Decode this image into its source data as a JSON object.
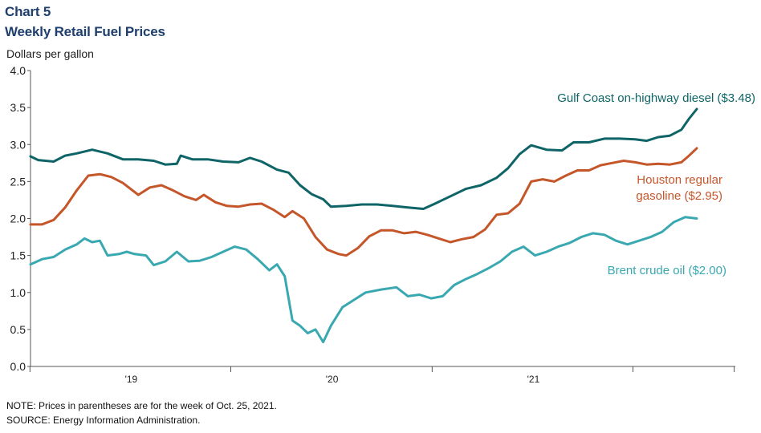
{
  "chart_data": {
    "type": "line",
    "label": "Chart 5",
    "title": "Weekly Retail Fuel Prices",
    "ylabel": "Dollars per gallon",
    "ylim": [
      0,
      4.0
    ],
    "yticks": [
      "0.0",
      "0.5",
      "1.0",
      "1.5",
      "2.0",
      "2.5",
      "3.0",
      "3.5",
      "4.0"
    ],
    "xticks": [
      "'19",
      "'20",
      "'21"
    ],
    "grid": false,
    "x_start": "2018-07-02",
    "x_end": "2022-01-03",
    "series": [
      {
        "name": "Gulf Coast on-highway diesel ($3.48)",
        "color": "#0e6466",
        "points": [
          [
            "2018-07-02",
            2.84
          ],
          [
            "2018-07-16",
            2.79
          ],
          [
            "2018-08-13",
            2.77
          ],
          [
            "2018-09-03",
            2.85
          ],
          [
            "2018-09-24",
            2.88
          ],
          [
            "2018-10-22",
            2.93
          ],
          [
            "2018-11-19",
            2.88
          ],
          [
            "2018-12-17",
            2.8
          ],
          [
            "2019-01-14",
            2.8
          ],
          [
            "2019-02-11",
            2.78
          ],
          [
            "2019-03-04",
            2.73
          ],
          [
            "2019-03-25",
            2.74
          ],
          [
            "2019-04-01",
            2.85
          ],
          [
            "2019-04-22",
            2.8
          ],
          [
            "2019-05-20",
            2.8
          ],
          [
            "2019-06-17",
            2.77
          ],
          [
            "2019-07-15",
            2.76
          ],
          [
            "2019-08-05",
            2.82
          ],
          [
            "2019-08-26",
            2.77
          ],
          [
            "2019-09-23",
            2.66
          ],
          [
            "2019-10-14",
            2.62
          ],
          [
            "2019-11-04",
            2.45
          ],
          [
            "2019-11-25",
            2.33
          ],
          [
            "2019-12-16",
            2.26
          ],
          [
            "2019-12-30",
            2.16
          ],
          [
            "2020-01-27",
            2.17
          ],
          [
            "2020-02-24",
            2.19
          ],
          [
            "2020-03-23",
            2.19
          ],
          [
            "2020-04-20",
            2.17
          ],
          [
            "2020-05-18",
            2.15
          ],
          [
            "2020-06-15",
            2.13
          ],
          [
            "2020-07-06",
            2.2
          ],
          [
            "2020-08-03",
            2.3
          ],
          [
            "2020-08-31",
            2.4
          ],
          [
            "2020-09-28",
            2.45
          ],
          [
            "2020-10-26",
            2.55
          ],
          [
            "2020-11-16",
            2.68
          ],
          [
            "2020-12-07",
            2.87
          ],
          [
            "2020-12-28",
            2.99
          ],
          [
            "2021-01-25",
            2.93
          ],
          [
            "2021-02-22",
            2.92
          ],
          [
            "2021-03-15",
            3.03
          ],
          [
            "2021-04-12",
            3.03
          ],
          [
            "2021-05-10",
            3.08
          ],
          [
            "2021-06-07",
            3.08
          ],
          [
            "2021-07-05",
            3.07
          ],
          [
            "2021-07-26",
            3.05
          ],
          [
            "2021-08-16",
            3.1
          ],
          [
            "2021-09-06",
            3.12
          ],
          [
            "2021-09-27",
            3.2
          ],
          [
            "2021-10-11",
            3.35
          ],
          [
            "2021-10-25",
            3.48
          ]
        ]
      },
      {
        "name": "Houston regular gasoline ($2.95)",
        "color": "#c4562a",
        "points": [
          [
            "2018-07-02",
            1.92
          ],
          [
            "2018-07-23",
            1.92
          ],
          [
            "2018-08-13",
            1.98
          ],
          [
            "2018-09-03",
            2.15
          ],
          [
            "2018-09-24",
            2.38
          ],
          [
            "2018-10-15",
            2.58
          ],
          [
            "2018-11-05",
            2.6
          ],
          [
            "2018-11-26",
            2.56
          ],
          [
            "2018-12-17",
            2.48
          ],
          [
            "2019-01-14",
            2.32
          ],
          [
            "2019-02-04",
            2.42
          ],
          [
            "2019-02-25",
            2.45
          ],
          [
            "2019-03-18",
            2.38
          ],
          [
            "2019-04-08",
            2.3
          ],
          [
            "2019-04-29",
            2.25
          ],
          [
            "2019-05-13",
            2.32
          ],
          [
            "2019-06-03",
            2.22
          ],
          [
            "2019-06-24",
            2.17
          ],
          [
            "2019-07-15",
            2.16
          ],
          [
            "2019-08-05",
            2.19
          ],
          [
            "2019-08-26",
            2.2
          ],
          [
            "2019-09-16",
            2.12
          ],
          [
            "2019-10-07",
            2.02
          ],
          [
            "2019-10-21",
            2.1
          ],
          [
            "2019-11-11",
            2.0
          ],
          [
            "2019-12-02",
            1.75
          ],
          [
            "2019-12-23",
            1.58
          ],
          [
            "2020-01-13",
            1.52
          ],
          [
            "2020-01-27",
            1.5
          ],
          [
            "2020-02-17",
            1.6
          ],
          [
            "2020-03-09",
            1.76
          ],
          [
            "2020-03-30",
            1.84
          ],
          [
            "2020-04-20",
            1.84
          ],
          [
            "2020-05-11",
            1.8
          ],
          [
            "2020-06-01",
            1.82
          ],
          [
            "2020-06-22",
            1.78
          ],
          [
            "2020-07-13",
            1.73
          ],
          [
            "2020-08-03",
            1.68
          ],
          [
            "2020-08-24",
            1.72
          ],
          [
            "2020-09-14",
            1.75
          ],
          [
            "2020-10-05",
            1.85
          ],
          [
            "2020-10-26",
            2.05
          ],
          [
            "2020-11-16",
            2.07
          ],
          [
            "2020-12-07",
            2.2
          ],
          [
            "2020-12-28",
            2.5
          ],
          [
            "2021-01-18",
            2.53
          ],
          [
            "2021-02-08",
            2.5
          ],
          [
            "2021-03-01",
            2.58
          ],
          [
            "2021-03-22",
            2.65
          ],
          [
            "2021-04-12",
            2.65
          ],
          [
            "2021-05-03",
            2.72
          ],
          [
            "2021-05-24",
            2.75
          ],
          [
            "2021-06-14",
            2.78
          ],
          [
            "2021-07-05",
            2.76
          ],
          [
            "2021-07-26",
            2.73
          ],
          [
            "2021-08-16",
            2.74
          ],
          [
            "2021-09-06",
            2.73
          ],
          [
            "2021-09-27",
            2.76
          ],
          [
            "2021-10-11",
            2.85
          ],
          [
            "2021-10-25",
            2.95
          ]
        ]
      },
      {
        "name": "Brent crude oil ($2.00)",
        "color": "#3aa8b0",
        "points": [
          [
            "2018-07-02",
            1.38
          ],
          [
            "2018-07-23",
            1.45
          ],
          [
            "2018-08-13",
            1.48
          ],
          [
            "2018-09-03",
            1.58
          ],
          [
            "2018-09-24",
            1.65
          ],
          [
            "2018-10-08",
            1.73
          ],
          [
            "2018-10-22",
            1.68
          ],
          [
            "2018-11-05",
            1.7
          ],
          [
            "2018-11-19",
            1.5
          ],
          [
            "2018-12-10",
            1.52
          ],
          [
            "2018-12-24",
            1.55
          ],
          [
            "2019-01-07",
            1.52
          ],
          [
            "2019-01-28",
            1.5
          ],
          [
            "2019-02-11",
            1.37
          ],
          [
            "2019-03-04",
            1.42
          ],
          [
            "2019-03-25",
            1.55
          ],
          [
            "2019-04-15",
            1.42
          ],
          [
            "2019-05-06",
            1.43
          ],
          [
            "2019-05-27",
            1.48
          ],
          [
            "2019-06-17",
            1.55
          ],
          [
            "2019-07-08",
            1.62
          ],
          [
            "2019-07-29",
            1.58
          ],
          [
            "2019-08-19",
            1.45
          ],
          [
            "2019-09-09",
            1.3
          ],
          [
            "2019-09-23",
            1.38
          ],
          [
            "2019-10-07",
            1.22
          ],
          [
            "2019-10-21",
            0.62
          ],
          [
            "2019-11-04",
            0.55
          ],
          [
            "2019-11-18",
            0.45
          ],
          [
            "2019-12-02",
            0.5
          ],
          [
            "2019-12-16",
            0.33
          ],
          [
            "2019-12-30",
            0.55
          ],
          [
            "2020-01-20",
            0.8
          ],
          [
            "2020-02-10",
            0.9
          ],
          [
            "2020-03-02",
            1.0
          ],
          [
            "2020-03-30",
            1.04
          ],
          [
            "2020-04-27",
            1.07
          ],
          [
            "2020-05-18",
            0.95
          ],
          [
            "2020-06-08",
            0.97
          ],
          [
            "2020-06-29",
            0.92
          ],
          [
            "2020-07-20",
            0.95
          ],
          [
            "2020-08-10",
            1.1
          ],
          [
            "2020-08-31",
            1.18
          ],
          [
            "2020-09-21",
            1.25
          ],
          [
            "2020-10-12",
            1.33
          ],
          [
            "2020-11-02",
            1.42
          ],
          [
            "2020-11-23",
            1.55
          ],
          [
            "2020-12-14",
            1.62
          ],
          [
            "2021-01-04",
            1.5
          ],
          [
            "2021-01-25",
            1.55
          ],
          [
            "2021-02-15",
            1.62
          ],
          [
            "2021-03-08",
            1.67
          ],
          [
            "2021-03-29",
            1.75
          ],
          [
            "2021-04-19",
            1.8
          ],
          [
            "2021-05-10",
            1.78
          ],
          [
            "2021-05-31",
            1.7
          ],
          [
            "2021-06-21",
            1.65
          ],
          [
            "2021-07-12",
            1.7
          ],
          [
            "2021-08-02",
            1.75
          ],
          [
            "2021-08-23",
            1.82
          ],
          [
            "2021-09-13",
            1.95
          ],
          [
            "2021-10-04",
            2.02
          ],
          [
            "2021-10-25",
            2.0
          ]
        ]
      }
    ]
  },
  "footnotes": {
    "note": "NOTE: Prices in parentheses are for the week of Oct. 25, 2021.",
    "source": "SOURCE: Energy Information  Administration."
  }
}
